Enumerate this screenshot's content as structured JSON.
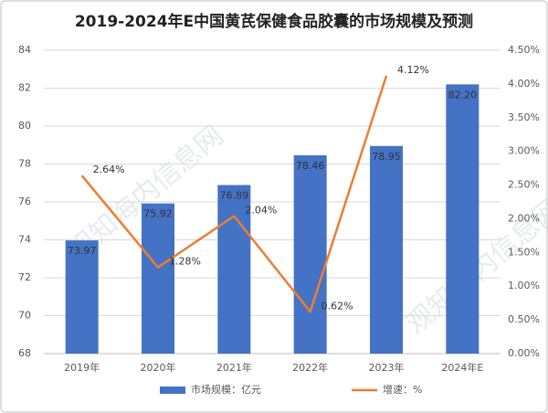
{
  "chart_data": {
    "type": "bar_line",
    "title": "2019-2024年E中国黄芪保健食品胶囊的市场规模及预测",
    "watermark": "观知海内信息网",
    "categories": [
      "2019年",
      "2020年",
      "2021年",
      "2022年",
      "2023年",
      "2024年E"
    ],
    "series": [
      {
        "name": "市场规模：亿元",
        "type": "bar",
        "color": "#4472c4",
        "values": [
          73.97,
          75.92,
          76.89,
          78.46,
          78.95,
          82.2
        ],
        "value_labels": [
          "73.97",
          "75.92",
          "76.89",
          "78.46",
          "78.95",
          "82.20"
        ]
      },
      {
        "name": "增速：%",
        "type": "line",
        "color": "#ed7d31",
        "axis": "y2",
        "values": [
          2.64,
          1.28,
          2.04,
          0.62,
          4.12,
          null
        ],
        "value_labels": [
          "2.64%",
          "1.28%",
          "2.04%",
          "0.62%",
          "4.12%",
          null
        ]
      }
    ],
    "ylim": [
      68,
      84
    ],
    "yticks": [
      68,
      70,
      72,
      74,
      76,
      78,
      80,
      82,
      84
    ],
    "y2lim": [
      0,
      4.5
    ],
    "y2ticks": [
      {
        "value": 0,
        "label": "0.00%"
      },
      {
        "value": 0.5,
        "label": "0.50%"
      },
      {
        "value": 1,
        "label": "1.00%"
      },
      {
        "value": 1.5,
        "label": "1.50%"
      },
      {
        "value": 2,
        "label": "2.00%"
      },
      {
        "value": 2.5,
        "label": "2.50%"
      },
      {
        "value": 3,
        "label": "3.00%"
      },
      {
        "value": 3.5,
        "label": "3.50%"
      },
      {
        "value": 4,
        "label": "4.00%"
      },
      {
        "value": 4.5,
        "label": "4.50%"
      }
    ],
    "grid": true,
    "legend": "bottom"
  }
}
